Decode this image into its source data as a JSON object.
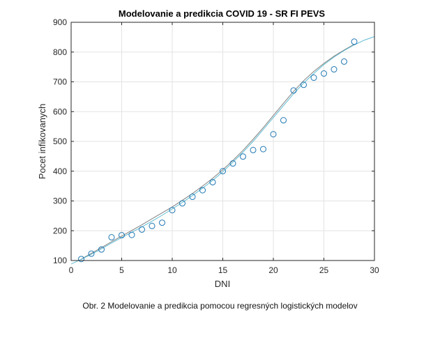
{
  "chart_data": {
    "type": "scatter",
    "title": "Modelovanie a predikcia COVID 19 - SR FI PEVS",
    "xlabel": "DNI",
    "ylabel": "Pocet infikovanych",
    "xlim": [
      0,
      30
    ],
    "ylim": [
      100,
      900
    ],
    "xticks": [
      0,
      5,
      10,
      15,
      20,
      25,
      30
    ],
    "yticks": [
      100,
      200,
      300,
      400,
      500,
      600,
      700,
      800,
      900
    ],
    "grid": true,
    "series": [
      {
        "kind": "scatter",
        "marker": "open-circle",
        "color": "#1f77b4",
        "x": [
          1,
          2,
          3,
          4,
          5,
          6,
          7,
          8,
          9,
          10,
          11,
          12,
          13,
          14,
          15,
          16,
          17,
          18,
          19,
          20,
          21,
          22,
          23,
          24,
          25,
          26,
          27,
          28
        ],
        "y": [
          105,
          123,
          137,
          178,
          185,
          186,
          204,
          216,
          227,
          269,
          292,
          314,
          336,
          363,
          400,
          426,
          449,
          471,
          474,
          524,
          571,
          671,
          690,
          714,
          728,
          742,
          768,
          835
        ]
      },
      {
        "kind": "line",
        "color": "#808080",
        "x": [
          1,
          2,
          3,
          4,
          5,
          6,
          7,
          8,
          9,
          10,
          11,
          12,
          13,
          14,
          15,
          16,
          17,
          18,
          19,
          20,
          21,
          22,
          23,
          24,
          25,
          26,
          27,
          28
        ],
        "y": [
          105,
          124,
          143,
          163,
          182,
          201,
          220,
          240,
          260,
          280,
          302,
          325,
          350,
          376,
          405,
          436,
          470,
          507,
          546,
          587,
          628,
          668,
          704,
          735,
          762,
          786,
          807,
          826
        ]
      },
      {
        "kind": "line",
        "color": "#5fbcd3",
        "x": [
          0,
          1,
          2,
          3,
          4,
          5,
          6,
          7,
          8,
          9,
          10,
          11,
          12,
          13,
          14,
          15,
          16,
          17,
          18,
          19,
          20,
          21,
          22,
          23,
          24,
          25,
          26,
          27,
          28,
          29,
          30
        ],
        "y": [
          88,
          104,
          121,
          139,
          159,
          177,
          195,
          213,
          232,
          252,
          273,
          295,
          318,
          343,
          369,
          398,
          430,
          464,
          500,
          540,
          580,
          620,
          660,
          696,
          728,
          758,
          783,
          805,
          824,
          840,
          852
        ]
      }
    ],
    "caption": "Obr. 2 Modelovanie a predikcia pomocou regresných logistických modelov"
  }
}
